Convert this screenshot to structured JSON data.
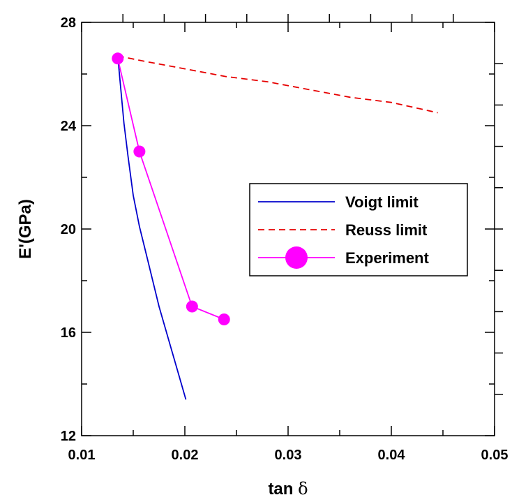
{
  "chart_data": {
    "type": "line",
    "xlabel": "tan",
    "xlabel_symbol": "δ",
    "ylabel": "E'(GPa)",
    "xlim": [
      0.01,
      0.05
    ],
    "ylim": [
      12,
      28
    ],
    "x_ticks": [
      0.01,
      0.02,
      0.03,
      0.04,
      0.05
    ],
    "x_tick_labels": [
      "0.01",
      "0.02",
      "0.03",
      "0.04",
      "0.05"
    ],
    "y_ticks": [
      12,
      16,
      20,
      24,
      28
    ],
    "y_tick_labels": [
      "12",
      "16",
      "20",
      "24",
      "28"
    ],
    "grid": false,
    "legend_position": "right",
    "series": [
      {
        "name": "Voigt limit",
        "color": "#0000cc",
        "style": "solid",
        "marker": "none",
        "x": [
          0.0135,
          0.0138,
          0.0141,
          0.0145,
          0.015,
          0.0156,
          0.0164,
          0.0175,
          0.0188,
          0.0201
        ],
        "y": [
          26.7,
          25.4,
          24.1,
          22.8,
          21.3,
          20.1,
          18.8,
          17.0,
          15.2,
          13.4
        ]
      },
      {
        "name": "Reuss limit",
        "color": "#e60000",
        "style": "dashed",
        "marker": "none",
        "x": [
          0.0135,
          0.016,
          0.02,
          0.024,
          0.028,
          0.032,
          0.036,
          0.04,
          0.0445
        ],
        "y": [
          26.7,
          26.5,
          26.2,
          25.9,
          25.7,
          25.4,
          25.1,
          24.9,
          24.5
        ]
      },
      {
        "name": "Experiment",
        "color": "#ff00ff",
        "style": "solid",
        "marker": "circle",
        "x": [
          0.0135,
          0.0156,
          0.0207,
          0.0238
        ],
        "y": [
          26.6,
          23.0,
          17.0,
          16.5
        ]
      }
    ]
  }
}
